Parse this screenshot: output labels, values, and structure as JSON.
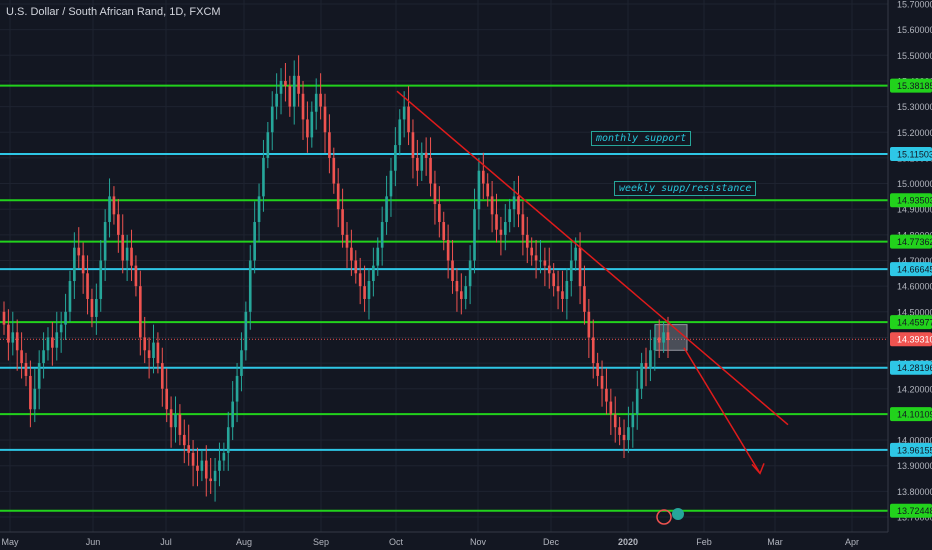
{
  "header": {
    "title": "U.S. Dollar / South African Rand, 1D, FXCM"
  },
  "annotations": {
    "monthly": "monthly support",
    "weekly": "weekly supp/resistance"
  },
  "colors": {
    "bg": "#131722",
    "grid": "#1e2330",
    "up": "#26a69a",
    "down": "#ef5350",
    "green_level": "#22d21c",
    "cyan_level": "#2ec7e6",
    "trend": "#e01b1b"
  },
  "chart_data": {
    "type": "candlestick",
    "title": "U.S. Dollar / South African Rand, 1D, FXCM",
    "y_axis": {
      "range": [
        13.7,
        15.7
      ],
      "ticks": [
        "15.70000",
        "15.60000",
        "15.50000",
        "15.40000",
        "15.30000",
        "15.20000",
        "15.10000",
        "15.00000",
        "14.90000",
        "14.80000",
        "14.70000",
        "14.60000",
        "14.50000",
        "14.40000",
        "14.30000",
        "14.20000",
        "14.10000",
        "14.00000",
        "13.90000",
        "13.80000",
        "13.70000"
      ]
    },
    "x_axis": {
      "ticks": [
        "May",
        "Jun",
        "Jul",
        "Aug",
        "Sep",
        "Oct",
        "Nov",
        "Dec",
        "2020",
        "Feb",
        "Mar",
        "Apr"
      ]
    },
    "levels": [
      {
        "label": "15.38185",
        "value": 15.38185,
        "kind": "green"
      },
      {
        "label": "15.11503",
        "value": 15.11503,
        "kind": "cyan"
      },
      {
        "label": "14.93503",
        "value": 14.93503,
        "kind": "green"
      },
      {
        "label": "14.77362",
        "value": 14.77362,
        "kind": "green"
      },
      {
        "label": "14.66645",
        "value": 14.66645,
        "kind": "cyan"
      },
      {
        "label": "14.45977",
        "value": 14.45977,
        "kind": "green"
      },
      {
        "label": "14.28196",
        "value": 14.28196,
        "kind": "cyan"
      },
      {
        "label": "14.10109",
        "value": 14.10109,
        "kind": "green"
      },
      {
        "label": "13.96155",
        "value": 13.96155,
        "kind": "cyan"
      },
      {
        "label": "13.72448",
        "value": 13.72448,
        "kind": "green"
      }
    ],
    "last_price": {
      "label": "14.39310",
      "value": 14.3931
    },
    "closes": [
      14.45,
      14.38,
      14.42,
      14.35,
      14.3,
      14.25,
      14.12,
      14.2,
      14.3,
      14.35,
      14.4,
      14.36,
      14.42,
      14.45,
      14.5,
      14.62,
      14.75,
      14.72,
      14.65,
      14.55,
      14.48,
      14.55,
      14.7,
      14.85,
      14.95,
      14.88,
      14.8,
      14.7,
      14.75,
      14.68,
      14.6,
      14.4,
      14.35,
      14.32,
      14.38,
      14.3,
      14.2,
      14.12,
      14.05,
      14.1,
      14.02,
      13.98,
      13.95,
      13.9,
      13.88,
      13.92,
      13.85,
      13.84,
      13.88,
      13.92,
      13.95,
      14.05,
      14.15,
      14.25,
      14.35,
      14.5,
      14.7,
      14.85,
      14.95,
      15.1,
      15.2,
      15.3,
      15.35,
      15.4,
      15.38,
      15.3,
      15.42,
      15.35,
      15.25,
      15.18,
      15.28,
      15.35,
      15.3,
      15.2,
      15.1,
      15.0,
      14.9,
      14.8,
      14.75,
      14.7,
      14.65,
      14.6,
      14.55,
      14.62,
      14.68,
      14.75,
      14.85,
      14.95,
      15.05,
      15.15,
      15.25,
      15.3,
      15.2,
      15.1,
      15.05,
      15.12,
      15.1,
      15.0,
      14.92,
      14.85,
      14.78,
      14.7,
      14.62,
      14.58,
      14.55,
      14.6,
      14.7,
      14.9,
      15.05,
      15.0,
      14.95,
      14.88,
      14.82,
      14.8,
      14.85,
      14.9,
      14.95,
      14.88,
      14.8,
      14.75,
      14.72,
      14.7,
      14.7,
      14.68,
      14.65,
      14.6,
      14.58,
      14.55,
      14.62,
      14.7,
      14.75,
      14.6,
      14.5,
      14.4,
      14.3,
      14.25,
      14.2,
      14.15,
      14.1,
      14.05,
      14.02,
      14.0,
      14.05,
      14.1,
      14.2,
      14.3,
      14.28,
      14.35,
      14.4,
      14.38,
      14.42,
      14.39
    ]
  }
}
